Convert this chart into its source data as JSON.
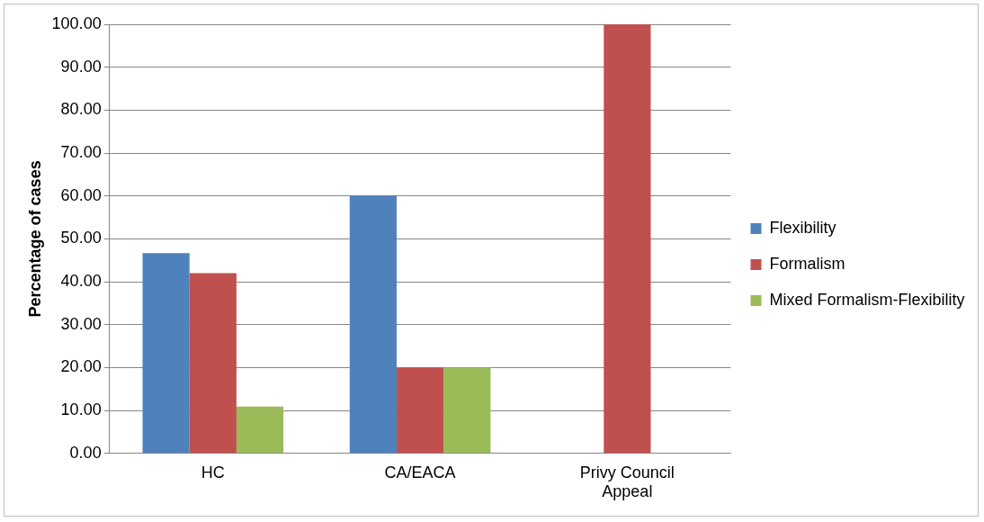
{
  "chart_data": {
    "type": "bar",
    "ylabel": "Percentage of cases",
    "categories": [
      "HC",
      "CA/EACA",
      "Privy Council Appeal"
    ],
    "series": [
      {
        "name": "Flexibility",
        "color": "#4f81bd",
        "values": [
          46.7,
          60,
          0
        ]
      },
      {
        "name": "Formalism",
        "color": "#c0504d",
        "values": [
          42.0,
          20,
          100
        ]
      },
      {
        "name": "Mixed Formalism-Flexibility",
        "color": "#9bbb59",
        "values": [
          10.9,
          20,
          0
        ]
      }
    ],
    "ylim": [
      0,
      100
    ],
    "yticks": [
      {
        "value": 0,
        "label": "0.00"
      },
      {
        "value": 10,
        "label": "10.00"
      },
      {
        "value": 20,
        "label": "20.00"
      },
      {
        "value": 30,
        "label": "30.00"
      },
      {
        "value": 40,
        "label": "40.00"
      },
      {
        "value": 50,
        "label": "50.00"
      },
      {
        "value": 60,
        "label": "60.00"
      },
      {
        "value": 70,
        "label": "70.00"
      },
      {
        "value": 80,
        "label": "80.00"
      },
      {
        "value": 90,
        "label": "90.00"
      },
      {
        "value": 100,
        "label": "100.00"
      }
    ],
    "grid": "y",
    "legend": "right"
  }
}
